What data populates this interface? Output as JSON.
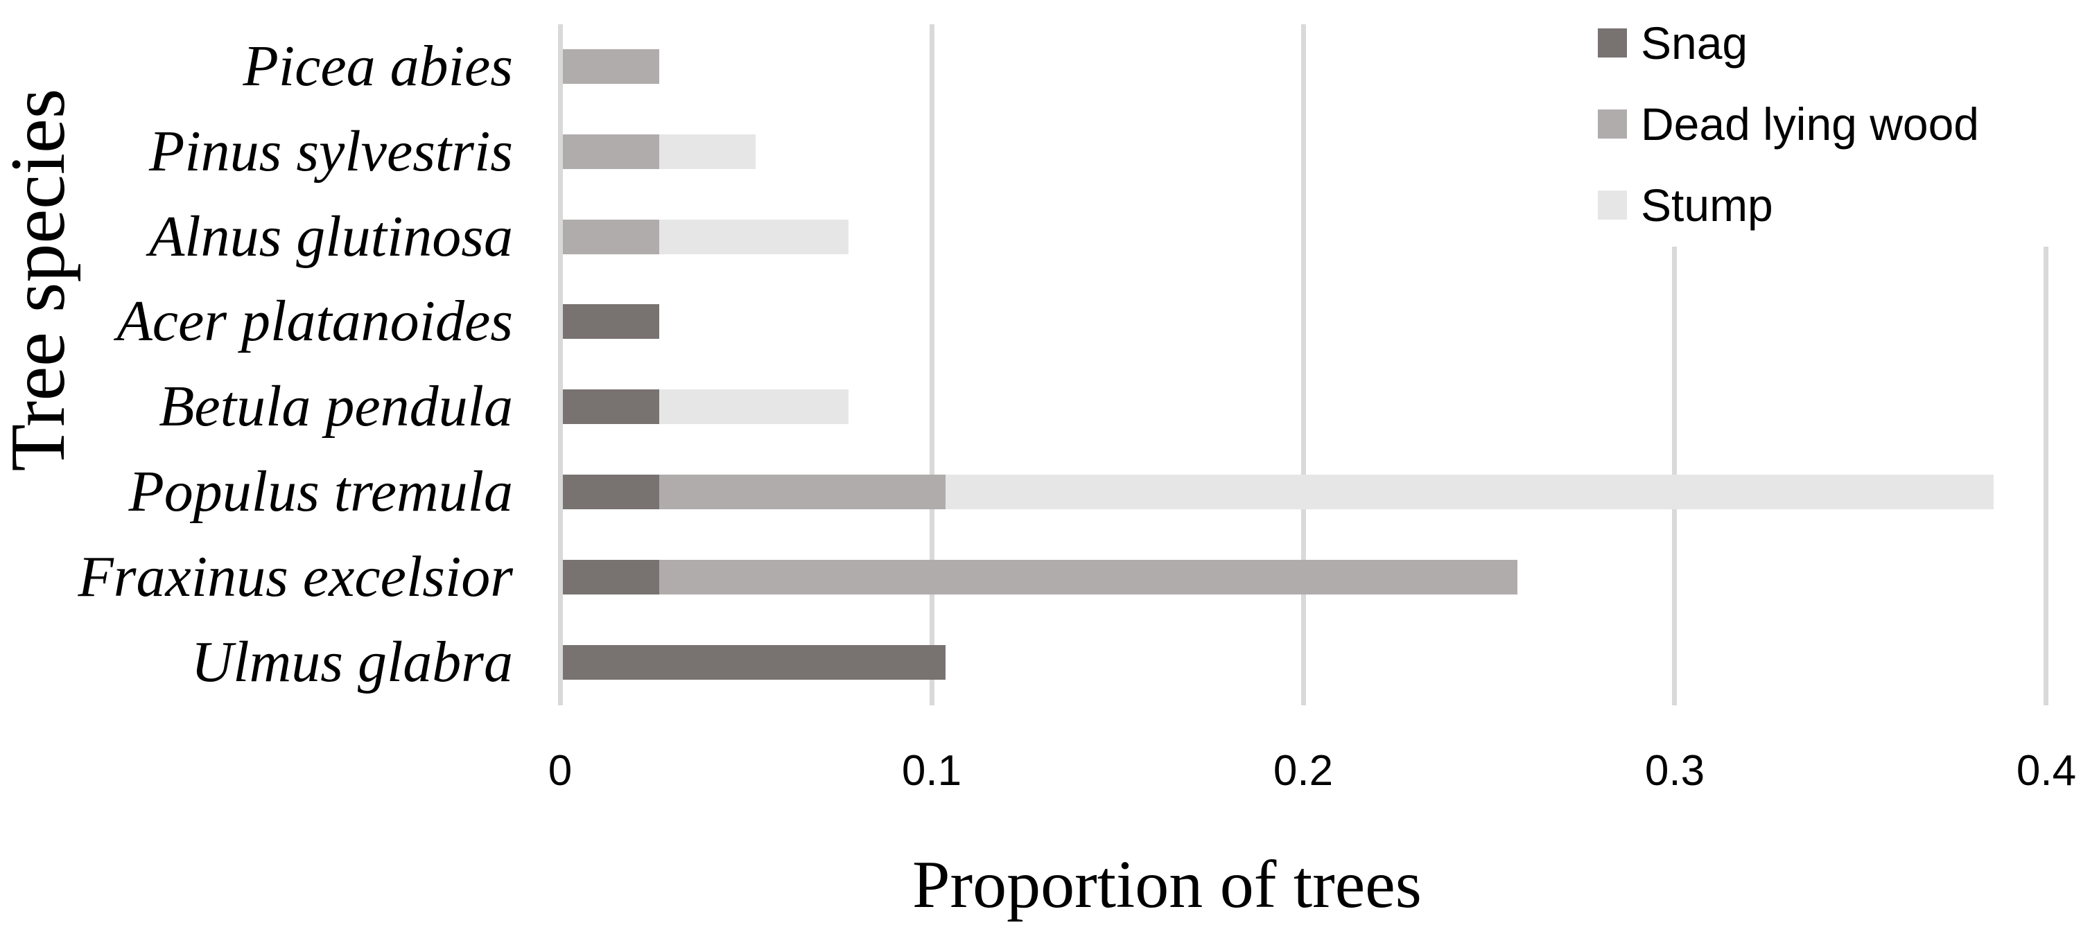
{
  "chart_data": {
    "type": "bar",
    "orientation": "horizontal",
    "stacked": true,
    "title": "",
    "xlabel": "Proportion of trees",
    "ylabel": "Tree species",
    "xlim": [
      0,
      0.4
    ],
    "xticks": [
      "0",
      "0.1",
      "0.2",
      "0.3",
      "0.4"
    ],
    "grid": "vertical",
    "legend_position": "top-right",
    "categories": [
      "Picea abies",
      "Pinus sylvestris",
      "Alnus glutinosa",
      "Acer platanoides",
      "Betula pendula",
      "Populus tremula",
      "Fraxinus excelsior",
      "Ulmus glabra"
    ],
    "series": [
      {
        "name": "Snag",
        "color": "#787271",
        "values": [
          0,
          0,
          0,
          0.026,
          0.026,
          0.026,
          0.026,
          0.103
        ]
      },
      {
        "name": "Dead lying wood",
        "color": "#b0acab",
        "values": [
          0.026,
          0.026,
          0.026,
          0,
          0,
          0.077,
          0.231,
          0
        ]
      },
      {
        "name": "Stump",
        "color": "#e6e6e6",
        "values": [
          0,
          0.026,
          0.051,
          0,
          0.051,
          0.282,
          0,
          0
        ]
      }
    ]
  },
  "axes": {
    "x_title": "Proportion of trees",
    "y_title": "Tree species",
    "ticks": [
      "0",
      "0.1",
      "0.2",
      "0.3",
      "0.4"
    ]
  },
  "legend": {
    "items": [
      {
        "label": "Snag",
        "color": "#787271"
      },
      {
        "label": "Dead lying wood",
        "color": "#b0acab"
      },
      {
        "label": "Stump",
        "color": "#e6e6e6"
      }
    ]
  },
  "species": [
    "Picea abies",
    "Pinus sylvestris",
    "Alnus glutinosa",
    "Acer platanoides",
    "Betula pendula",
    "Populus tremula",
    "Fraxinus excelsior",
    "Ulmus glabra"
  ],
  "colors": {
    "grid": "#d9d9d9"
  }
}
